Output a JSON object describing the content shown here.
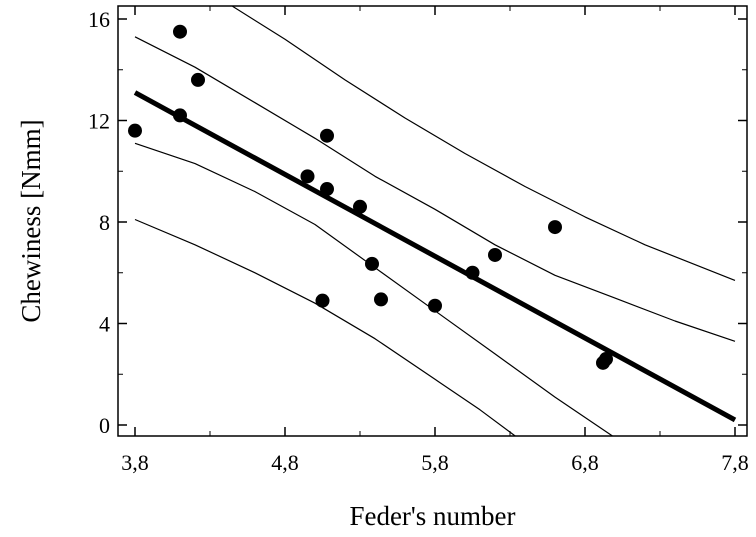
{
  "chart_data": {
    "type": "scatter",
    "xlabel": "Feder's number",
    "ylabel": "Chewiness [Nmm]",
    "xlim": [
      3.7,
      7.8
    ],
    "ylim": [
      -0.5,
      16.5
    ],
    "x_ticks": [
      3.8,
      4.8,
      5.8,
      6.8,
      7.8
    ],
    "x_tick_labels": [
      "3,8",
      "4,8",
      "5,8",
      "6,8",
      "7,8"
    ],
    "y_ticks": [
      0,
      4,
      8,
      12,
      16
    ],
    "y_tick_labels": [
      "0",
      "4",
      "8",
      "12",
      "16"
    ],
    "grid": false,
    "series": [
      {
        "role": "observations",
        "marker": "filled-circle",
        "points": [
          {
            "x": 3.8,
            "y": 11.6
          },
          {
            "x": 4.1,
            "y": 15.5
          },
          {
            "x": 4.1,
            "y": 12.2
          },
          {
            "x": 4.22,
            "y": 13.6
          },
          {
            "x": 4.95,
            "y": 9.8
          },
          {
            "x": 5.05,
            "y": 4.9
          },
          {
            "x": 5.08,
            "y": 11.4
          },
          {
            "x": 5.08,
            "y": 9.3
          },
          {
            "x": 5.3,
            "y": 8.6
          },
          {
            "x": 5.38,
            "y": 6.35
          },
          {
            "x": 5.44,
            "y": 4.95
          },
          {
            "x": 5.8,
            "y": 4.7
          },
          {
            "x": 6.05,
            "y": 6.0
          },
          {
            "x": 6.2,
            "y": 6.7
          },
          {
            "x": 6.6,
            "y": 7.8
          },
          {
            "x": 6.92,
            "y": 2.45
          },
          {
            "x": 6.94,
            "y": 2.6
          }
        ]
      },
      {
        "role": "regression-line",
        "style": "thick",
        "points": [
          {
            "x": 3.8,
            "y": 13.1
          },
          {
            "x": 7.8,
            "y": 0.2
          }
        ]
      },
      {
        "role": "confidence-band-upper",
        "style": "thin",
        "points": [
          {
            "x": 3.8,
            "y": 15.3
          },
          {
            "x": 4.2,
            "y": 14.1
          },
          {
            "x": 4.6,
            "y": 12.7
          },
          {
            "x": 5.0,
            "y": 11.3
          },
          {
            "x": 5.4,
            "y": 9.8
          },
          {
            "x": 5.8,
            "y": 8.5
          },
          {
            "x": 6.2,
            "y": 7.1
          },
          {
            "x": 6.6,
            "y": 5.9
          },
          {
            "x": 7.0,
            "y": 5.0
          },
          {
            "x": 7.4,
            "y": 4.1
          },
          {
            "x": 7.8,
            "y": 3.3
          }
        ]
      },
      {
        "role": "confidence-band-lower",
        "style": "thin",
        "points": [
          {
            "x": 3.8,
            "y": 11.1
          },
          {
            "x": 4.2,
            "y": 10.3
          },
          {
            "x": 4.6,
            "y": 9.2
          },
          {
            "x": 5.0,
            "y": 7.9
          },
          {
            "x": 5.4,
            "y": 6.2
          },
          {
            "x": 5.8,
            "y": 4.5
          },
          {
            "x": 6.2,
            "y": 2.8
          },
          {
            "x": 6.6,
            "y": 1.1
          },
          {
            "x": 7.0,
            "y": -0.5
          }
        ]
      },
      {
        "role": "prediction-band-upper",
        "style": "thin",
        "points": [
          {
            "x": 4.45,
            "y": 16.5
          },
          {
            "x": 4.8,
            "y": 15.2
          },
          {
            "x": 5.2,
            "y": 13.6
          },
          {
            "x": 5.6,
            "y": 12.1
          },
          {
            "x": 6.0,
            "y": 10.7
          },
          {
            "x": 6.4,
            "y": 9.4
          },
          {
            "x": 6.8,
            "y": 8.2
          },
          {
            "x": 7.2,
            "y": 7.1
          },
          {
            "x": 7.8,
            "y": 5.7
          }
        ]
      },
      {
        "role": "prediction-band-lower",
        "style": "thin",
        "points": [
          {
            "x": 3.8,
            "y": 8.1
          },
          {
            "x": 4.2,
            "y": 7.1
          },
          {
            "x": 4.6,
            "y": 6.0
          },
          {
            "x": 5.0,
            "y": 4.8
          },
          {
            "x": 5.4,
            "y": 3.4
          },
          {
            "x": 5.8,
            "y": 1.8
          },
          {
            "x": 6.1,
            "y": 0.6
          },
          {
            "x": 6.35,
            "y": -0.5
          }
        ]
      }
    ]
  }
}
